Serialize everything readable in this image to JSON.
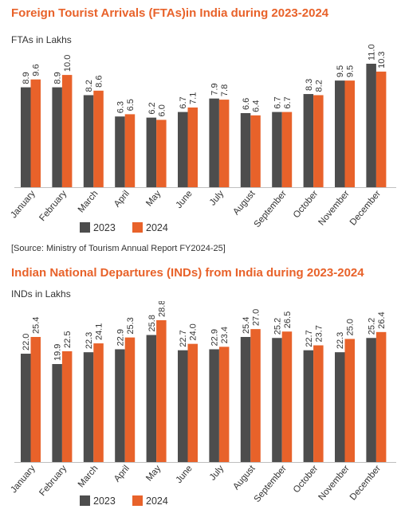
{
  "chart_data": [
    {
      "type": "bar",
      "title": "Foreign Tourist Arrivals (FTAs)in India during 2023-2024",
      "ylabel": "FTAs in Lakhs",
      "categories": [
        "January",
        "February",
        "March",
        "April",
        "May",
        "June",
        "July",
        "August",
        "September",
        "October",
        "November",
        "December"
      ],
      "series": [
        {
          "name": "2023",
          "values": [
            8.9,
            8.9,
            8.2,
            6.3,
            6.2,
            6.7,
            7.9,
            6.6,
            6.7,
            8.3,
            9.5,
            11.0
          ],
          "labels": [
            "8.9",
            "8.9",
            "8.2",
            "6.3",
            "6.2",
            "6.7",
            "7.9",
            "6.6",
            "6.7",
            "8.3",
            "9.5",
            "11.0"
          ]
        },
        {
          "name": "2024",
          "values": [
            9.6,
            10.0,
            8.6,
            6.5,
            6.0,
            7.1,
            7.8,
            6.4,
            6.7,
            8.2,
            9.5,
            10.3
          ],
          "labels": [
            "9.6",
            "10.0",
            "8.6",
            "6.5",
            "6.0",
            "7.1",
            "7.8",
            "6.4",
            "6.7",
            "8.2",
            "9.5",
            "10.3"
          ]
        }
      ],
      "ylim": [
        0,
        11
      ],
      "grid": false,
      "legend": "bottom"
    },
    {
      "type": "bar",
      "title": "Indian National Departures (INDs) from India during 2023-2024",
      "ylabel": "INDs in Lakhs",
      "categories": [
        "January",
        "February",
        "March",
        "April",
        "May",
        "June",
        "July",
        "August",
        "September",
        "October",
        "November",
        "December"
      ],
      "series": [
        {
          "name": "2023",
          "values": [
            22.0,
            19.9,
            22.3,
            22.9,
            25.8,
            22.7,
            22.9,
            25.4,
            25.2,
            22.7,
            22.3,
            25.2
          ],
          "labels": [
            "22.0",
            "19.9",
            "22.3",
            "22.9",
            "25.8",
            "22.7",
            "22.9",
            "25.4",
            "25.2",
            "22.7",
            "22.3",
            "25.2"
          ]
        },
        {
          "name": "2024",
          "values": [
            25.4,
            22.5,
            24.1,
            25.3,
            28.8,
            24.0,
            23.4,
            27.0,
            26.5,
            23.7,
            25.0,
            26.4
          ],
          "labels": [
            "25.4",
            "22.5",
            "24.1",
            "25.3",
            "28.8",
            "24.0",
            "23.4",
            "27.0",
            "26.5",
            "23.7",
            "25.0",
            "26.4"
          ]
        }
      ],
      "ylim": [
        0,
        28.8
      ],
      "grid": false,
      "legend": "bottom"
    }
  ],
  "source": "[Source: Ministry of Tourism Annual Report FY2024-25]",
  "colors": {
    "series_2023": "#4d4d4d",
    "series_2024": "#e8622a",
    "title": "#e8622a"
  }
}
